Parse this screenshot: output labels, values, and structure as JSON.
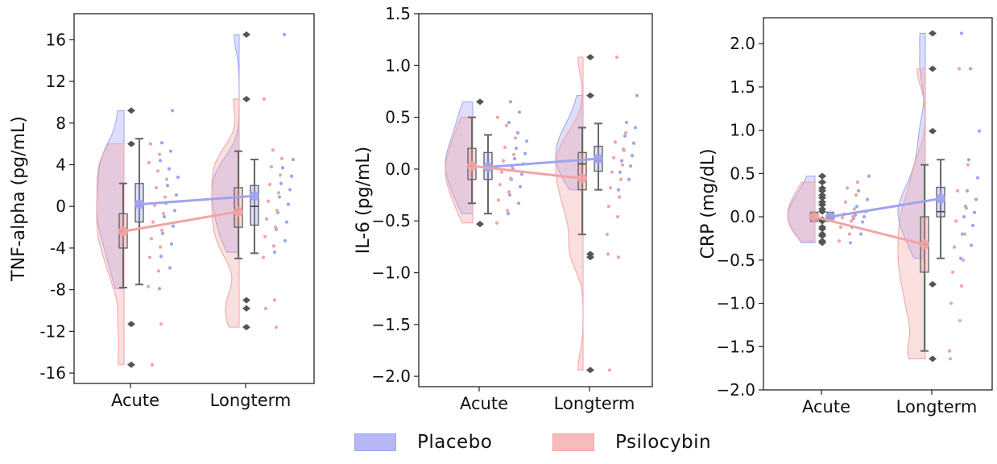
{
  "chart_data": [
    {
      "type": "raincloud",
      "ylabel": "TNF-alpha (pg/mL)",
      "categories": [
        "Acute",
        "Longterm"
      ],
      "ylim": [
        -17,
        18.5
      ],
      "yticks": [
        16,
        12,
        8,
        4,
        0,
        -4,
        -8,
        -12,
        -16
      ],
      "ytick_labels": [
        "16",
        "12",
        "8",
        "4",
        "0",
        "-4",
        "-8",
        "-12",
        "-16"
      ],
      "series": [
        {
          "name": "Placebo",
          "color": "#9fa3f0",
          "means": [
            0.2,
            1.0
          ],
          "box": [
            {
              "q1": -1.5,
              "median": 0.1,
              "q3": 2.2,
              "wlo": -7.5,
              "whi": 6.5
            },
            {
              "q1": -1.8,
              "median": 0.0,
              "q3": 2.0,
              "wlo": -4.5,
              "whi": 4.5
            }
          ],
          "outliers": [
            [
              9.2
            ],
            [
              16.5
            ]
          ],
          "points": [
            [
              -7.9,
              -5.9,
              -4.8,
              -3.6,
              -2.6,
              -1.9,
              -1.0,
              -0.4,
              0.3,
              1.1,
              2.0,
              2.8,
              3.6,
              4.4,
              5.3,
              6.1,
              9.2
            ],
            [
              -4.4,
              -3.3,
              -2.2,
              -1.5,
              -0.6,
              0.2,
              0.9,
              1.6,
              2.2,
              2.9,
              3.7,
              4.5,
              16.5
            ]
          ]
        },
        {
          "name": "Psilocybin",
          "color": "#f2a3a3",
          "means": [
            -2.4,
            -0.5
          ],
          "box": [
            {
              "q1": -4.0,
              "median": -2.4,
              "q3": -0.7,
              "wlo": -7.8,
              "whi": 2.2
            },
            {
              "q1": -2.0,
              "median": -0.3,
              "q3": 1.8,
              "wlo": -5.0,
              "whi": 5.3
            }
          ],
          "outliers": [
            [
              6.0,
              -11.3,
              -15.2
            ],
            [
              10.3,
              -9.0,
              -9.8,
              -11.6
            ]
          ],
          "points": [
            [
              -7.7,
              -6.2,
              -4.9,
              -3.9,
              -3.1,
              -2.3,
              -1.5,
              -0.7,
              0.1,
              0.9,
              1.8,
              2.6,
              3.4,
              4.2,
              5.0,
              6.0,
              -11.3,
              -15.2
            ],
            [
              -4.9,
              -3.8,
              -2.9,
              -2.0,
              -1.2,
              -0.4,
              0.5,
              1.3,
              2.1,
              3.0,
              3.8,
              4.6,
              5.4,
              10.3,
              -9.0,
              -9.8,
              -11.6
            ]
          ]
        }
      ]
    },
    {
      "type": "raincloud",
      "ylabel": "IL-6 (pg/mL)",
      "categories": [
        "Acute",
        "Longterm"
      ],
      "ylim": [
        -2.1,
        1.5
      ],
      "yticks": [
        1.5,
        1.0,
        0.5,
        0.0,
        -0.5,
        -1.0,
        -1.5,
        -2.0
      ],
      "ytick_labels": [
        "1.5",
        "1.0",
        "0.5",
        "0.0",
        "−0.5",
        "−1.0",
        "−1.5",
        "−2.0"
      ],
      "series": [
        {
          "name": "Placebo",
          "color": "#9fa3f0",
          "means": [
            0.02,
            0.1
          ],
          "box": [
            {
              "q1": -0.1,
              "median": 0.02,
              "q3": 0.16,
              "wlo": -0.43,
              "whi": 0.33
            },
            {
              "q1": -0.02,
              "median": 0.08,
              "q3": 0.22,
              "wlo": -0.2,
              "whi": 0.44
            }
          ],
          "outliers": [
            [
              0.65
            ],
            [
              0.71,
              1.08
            ]
          ],
          "points": [
            [
              -0.43,
              -0.33,
              -0.25,
              -0.17,
              -0.1,
              -0.05,
              0.0,
              0.05,
              0.1,
              0.15,
              0.2,
              0.27,
              0.35,
              0.45,
              0.55,
              0.65
            ],
            [
              -0.2,
              -0.1,
              -0.03,
              0.03,
              0.08,
              0.13,
              0.19,
              0.25,
              0.32,
              0.4,
              0.45,
              0.71
            ]
          ]
        },
        {
          "name": "Psilocybin",
          "color": "#f2a3a3",
          "means": [
            0.03,
            -0.09
          ],
          "box": [
            {
              "q1": -0.1,
              "median": 0.03,
              "q3": 0.2,
              "wlo": -0.33,
              "whi": 0.5
            },
            {
              "q1": -0.2,
              "median": 0.05,
              "q3": 0.16,
              "wlo": -0.63,
              "whi": 0.4
            }
          ],
          "outliers": [
            [
              -0.53
            ],
            [
              -0.82,
              -0.85,
              -1.94
            ]
          ],
          "points": [
            [
              -0.52,
              -0.4,
              -0.3,
              -0.22,
              -0.15,
              -0.09,
              -0.03,
              0.02,
              0.08,
              0.14,
              0.21,
              0.3,
              0.42,
              0.5
            ],
            [
              -0.63,
              -0.46,
              -0.36,
              -0.27,
              -0.18,
              -0.1,
              -0.03,
              0.04,
              0.11,
              0.18,
              0.26,
              0.35,
              1.08,
              -0.82,
              -0.85,
              -1.94
            ]
          ]
        }
      ]
    },
    {
      "type": "raincloud",
      "ylabel": "CRP (mg/dL)",
      "categories": [
        "Acute",
        "Longterm"
      ],
      "ylim": [
        -2.0,
        2.3
      ],
      "yticks": [
        2.0,
        1.5,
        1.0,
        0.5,
        0.0,
        -0.5,
        -1.0,
        -1.5,
        -2.0
      ],
      "ytick_labels": [
        "2.0",
        "1.5",
        "1.0",
        "0.5",
        "0.0",
        "−0.5",
        "−1.0",
        "−1.5",
        "−2.0"
      ],
      "series": [
        {
          "name": "Placebo",
          "color": "#9fa3f0",
          "means": [
            0.0,
            0.21
          ],
          "box": [
            {
              "q1": -0.02,
              "median": 0.0,
              "q3": 0.02,
              "wlo": -0.05,
              "whi": 0.05
            },
            {
              "q1": 0.0,
              "median": 0.06,
              "q3": 0.34,
              "wlo": -0.48,
              "whi": 0.66
            }
          ],
          "outliers": [
            [
              0.47,
              0.4,
              0.3,
              0.22,
              0.14,
              0.06,
              -0.05,
              -0.14,
              -0.22,
              -0.3
            ],
            [
              2.12,
              1.71,
              0.99
            ]
          ],
          "points": [
            [
              -0.3,
              -0.2,
              -0.12,
              -0.06,
              -0.02,
              0.0,
              0.02,
              0.06,
              0.12,
              0.2,
              0.3,
              0.47
            ],
            [
              -0.48,
              -0.33,
              -0.2,
              -0.1,
              0.0,
              0.05,
              0.12,
              0.2,
              0.3,
              0.45,
              0.66,
              0.99,
              1.71,
              2.12
            ]
          ]
        },
        {
          "name": "Psilocybin",
          "color": "#f2a3a3",
          "means": [
            0.0,
            -0.32
          ],
          "box": [
            {
              "q1": -0.03,
              "median": 0.0,
              "q3": 0.03,
              "wlo": -0.05,
              "whi": 0.05
            },
            {
              "q1": -0.64,
              "median": -0.32,
              "q3": 0.0,
              "wlo": -1.55,
              "whi": 0.6
            }
          ],
          "outliers": [
            [
              0.47,
              0.4,
              0.33,
              0.25,
              0.17,
              0.09,
              -0.03,
              -0.12,
              -0.2,
              -0.28
            ],
            [
              -0.78,
              -1.64
            ]
          ],
          "points": [
            [
              -0.28,
              -0.2,
              -0.12,
              -0.05,
              -0.01,
              0.0,
              0.03,
              0.09,
              0.17,
              0.25,
              0.33,
              0.4
            ],
            [
              -1.55,
              -1.2,
              -1.0,
              -0.8,
              -0.64,
              -0.5,
              -0.35,
              -0.2,
              -0.05,
              0.1,
              0.3,
              0.6,
              1.71,
              -1.64
            ]
          ]
        }
      ]
    }
  ],
  "legend": {
    "items": [
      {
        "label": "Placebo",
        "color": "#b5b8f3",
        "edge": "#9fa3f0"
      },
      {
        "label": "Psilocybin",
        "color": "#f6bcbc",
        "edge": "#f2a3a3"
      }
    ]
  }
}
